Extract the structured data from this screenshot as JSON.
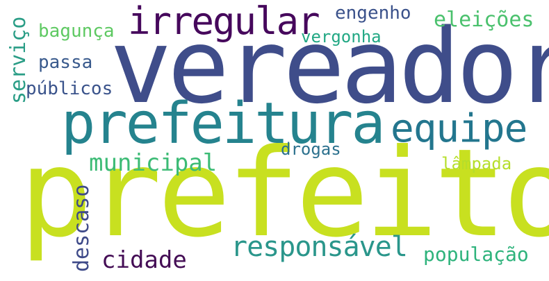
{
  "words": {
    "prefeito": {
      "text": "prefeito",
      "color": "#c8e020"
    },
    "vereador": {
      "text": "vereador",
      "color": "#3f4d8a"
    },
    "prefeitura": {
      "text": "prefeitura",
      "color": "#25838e"
    },
    "equipe": {
      "text": "equipe",
      "color": "#23768e"
    },
    "irregular": {
      "text": "irregular",
      "color": "#46085c"
    },
    "responsavel": {
      "text": "responsável",
      "color": "#2a968b"
    },
    "municipal": {
      "text": "municipal",
      "color": "#3cbb75"
    },
    "cidade": {
      "text": "cidade",
      "color": "#440d55"
    },
    "eleicoes": {
      "text": "eleições",
      "color": "#4ac16d"
    },
    "populacao": {
      "text": "população",
      "color": "#2eb37c"
    },
    "engenho": {
      "text": "engenho",
      "color": "#3b528b"
    },
    "bagunca": {
      "text": "bagunça",
      "color": "#5ec962"
    },
    "vergonha": {
      "text": "vergonha",
      "color": "#22a884"
    },
    "passa": {
      "text": "passa",
      "color": "#38598c"
    },
    "publicos": {
      "text": "públicos",
      "color": "#3a538b"
    },
    "drogas": {
      "text": "drogas",
      "color": "#2c718e"
    },
    "lampada": {
      "text": "lâmpada",
      "color": "#b5de2b"
    },
    "servico": {
      "text": "serviço",
      "color": "#2a9d86"
    },
    "descaso": {
      "text": "descaso",
      "color": "#3e4a89"
    }
  }
}
